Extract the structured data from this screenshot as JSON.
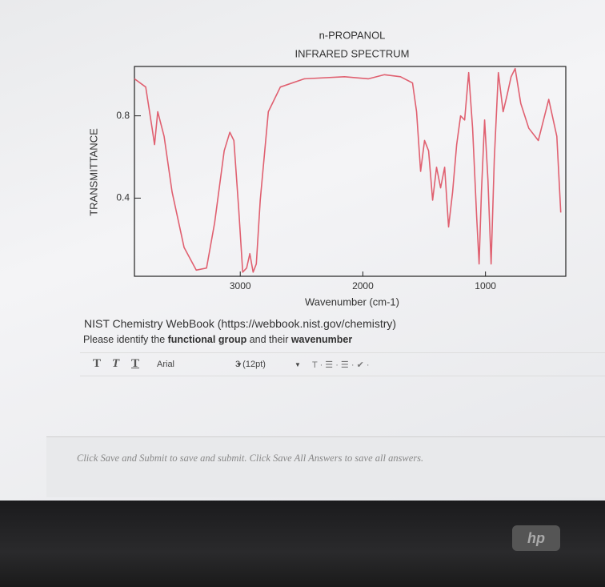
{
  "chart_data": {
    "type": "line",
    "title": "n-PROPANOL",
    "subtitle": "INFRARED SPECTRUM",
    "x_label": "Wavenumber (cm-1)",
    "y_label": "TRANSMITTANCE",
    "x": [
      3863,
      3771,
      3719,
      3699,
      3673,
      3621,
      3556,
      3458,
      3359,
      3275,
      3209,
      3131,
      3085,
      3052,
      3013,
      2980,
      2948,
      2922,
      2895,
      2869,
      2837,
      2771,
      2673,
      2477,
      2150,
      1954,
      1824,
      1693,
      1595,
      1562,
      1529,
      1497,
      1464,
      1431,
      1399,
      1366,
      1333,
      1301,
      1268,
      1235,
      1203,
      1170,
      1137,
      1105,
      1072,
      1052,
      1033,
      1007,
      980,
      954,
      928,
      895,
      856,
      824,
      791,
      758,
      712,
      647,
      569,
      484,
      418,
      386
    ],
    "series": [
      {
        "name": null,
        "color": "#e06070",
        "values": [
          0.98,
          0.94,
          0.74,
          0.66,
          0.82,
          0.7,
          0.43,
          0.16,
          0.05,
          0.06,
          0.28,
          0.63,
          0.72,
          0.68,
          0.35,
          0.04,
          0.06,
          0.13,
          0.04,
          0.08,
          0.39,
          0.82,
          0.94,
          0.98,
          0.99,
          0.98,
          1.0,
          0.99,
          0.96,
          0.82,
          0.53,
          0.68,
          0.63,
          0.39,
          0.55,
          0.45,
          0.55,
          0.26,
          0.43,
          0.66,
          0.8,
          0.78,
          1.01,
          0.74,
          0.31,
          0.08,
          0.43,
          0.78,
          0.49,
          0.08,
          0.59,
          1.01,
          0.82,
          0.9,
          0.99,
          1.03,
          0.86,
          0.74,
          0.68,
          0.88,
          0.7,
          0.33
        ]
      }
    ],
    "xlim": [
      3863,
      345
    ],
    "ylim": [
      0.02,
      1.04
    ],
    "xticks": [
      3000,
      2000,
      1000
    ],
    "yticks": [
      0.8,
      0.4
    ]
  },
  "caption": "NIST Chemistry WebBook (https://webbook.nist.gov/chemistry)",
  "prompt": [
    "Please identify the ",
    "functional group",
    " and their ",
    "wavenumber"
  ],
  "toolbar": {
    "styles": [
      "T",
      "T",
      "T"
    ],
    "font": "Arial",
    "size": "3 (12pt)"
  },
  "footer": "Click Save and Submit to save and submit. Click Save All Answers to save all answers.",
  "logo": "hp"
}
